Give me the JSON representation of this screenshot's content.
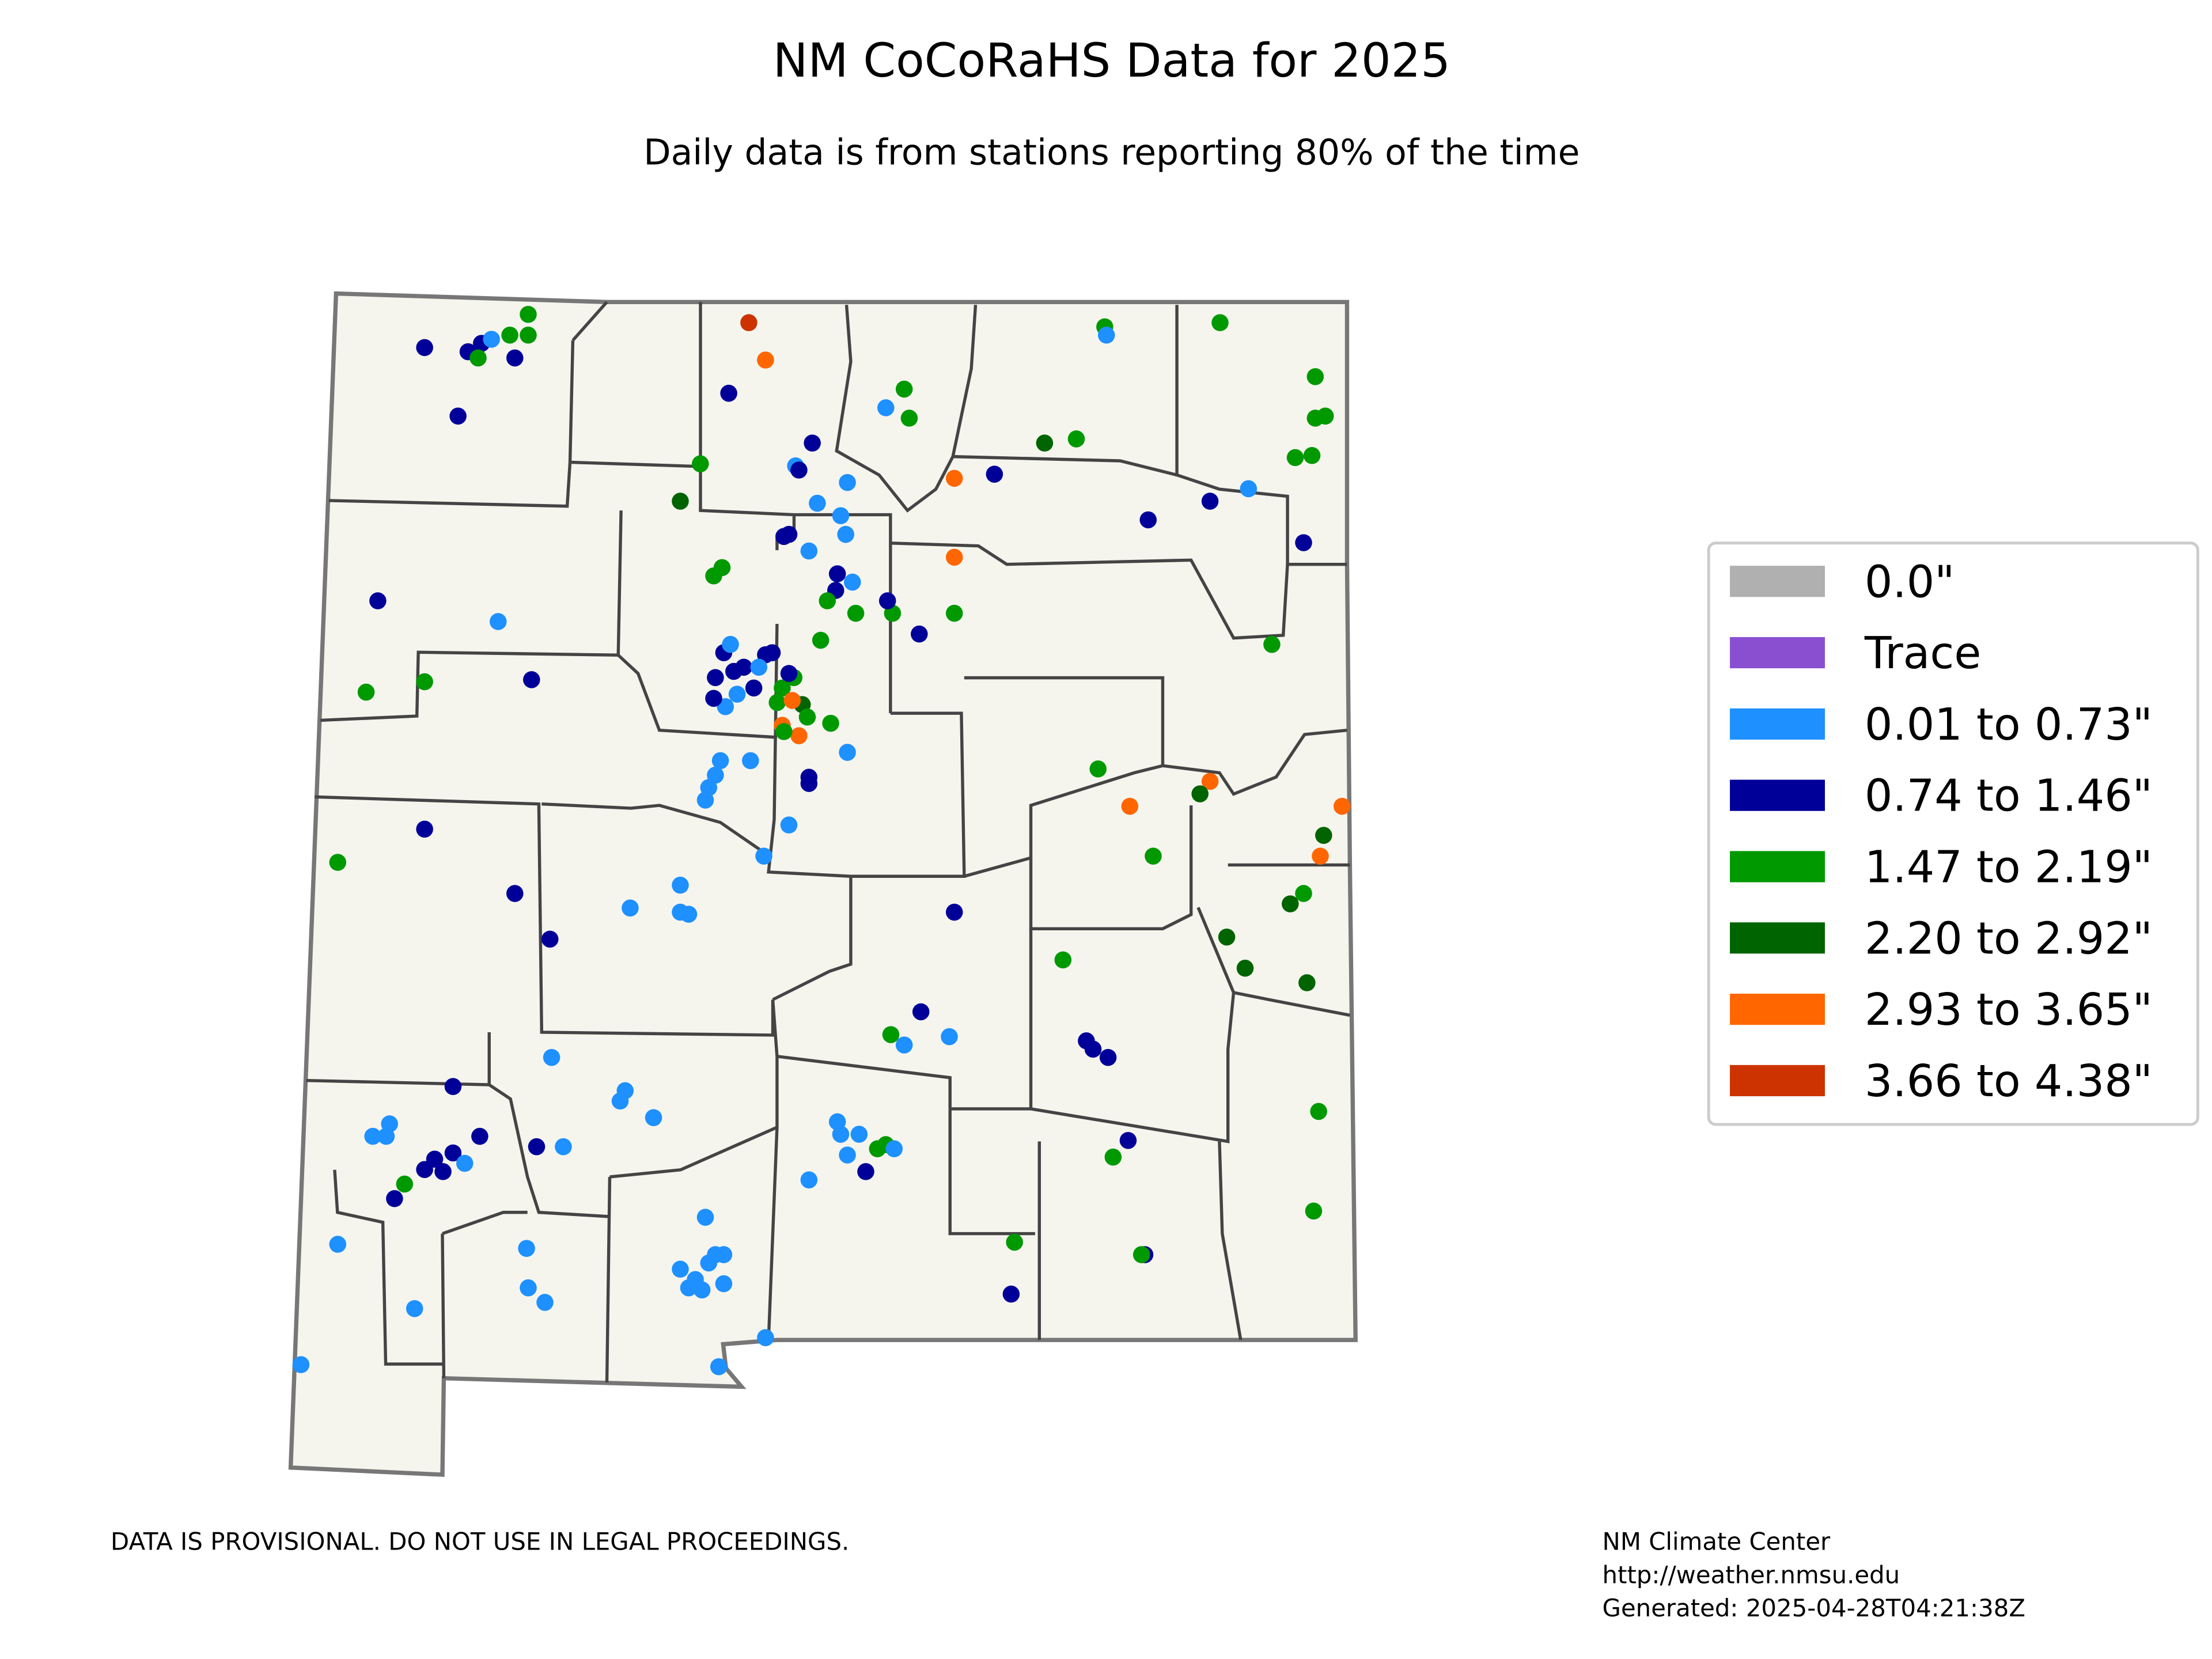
{
  "header": {
    "title": "NM CoCoRaHS Data for 2025",
    "subtitle": "Daily data is from stations reporting 80% of the time"
  },
  "legend": {
    "items": [
      {
        "label": "0.0\"",
        "color": "#b0b0b0"
      },
      {
        "label": "Trace",
        "color": "#8a4fd1"
      },
      {
        "label": "0.01 to 0.73\"",
        "color": "#1e90ff"
      },
      {
        "label": "0.74 to 1.46\"",
        "color": "#000099"
      },
      {
        "label": "1.47 to 2.19\"",
        "color": "#009900"
      },
      {
        "label": "2.20 to 2.92\"",
        "color": "#006400"
      },
      {
        "label": "2.93 to 3.65\"",
        "color": "#ff6600"
      },
      {
        "label": "3.66 to 4.38\"",
        "color": "#cc3300"
      }
    ]
  },
  "map": {
    "lon_lim": [
      -109.05,
      -103.0
    ],
    "lat_lim": [
      31.33,
      37.0
    ],
    "stations": [
      [
        -108.52,
        36.76,
        3
      ],
      [
        -108.26,
        36.74,
        3
      ],
      [
        -108.18,
        36.78,
        3
      ],
      [
        -108.12,
        36.8,
        2
      ],
      [
        -107.98,
        36.71,
        3
      ],
      [
        -108.2,
        36.71,
        4
      ],
      [
        -108.01,
        36.82,
        4
      ],
      [
        -107.9,
        36.82,
        4
      ],
      [
        -107.9,
        36.92,
        4
      ],
      [
        -108.32,
        36.43,
        3
      ],
      [
        -106.58,
        36.88,
        7
      ],
      [
        -106.48,
        36.7,
        6
      ],
      [
        -106.7,
        36.54,
        3
      ],
      [
        -106.2,
        36.3,
        3
      ],
      [
        -106.3,
        36.19,
        2
      ],
      [
        -106.28,
        36.17,
        3
      ],
      [
        -106.87,
        36.2,
        4
      ],
      [
        -106.99,
        36.02,
        5
      ],
      [
        -105.99,
        36.11,
        2
      ],
      [
        -106.17,
        36.01,
        2
      ],
      [
        -106.03,
        35.95,
        2
      ],
      [
        -106.0,
        35.86,
        2
      ],
      [
        -106.34,
        35.86,
        3
      ],
      [
        -106.37,
        35.85,
        3
      ],
      [
        -106.22,
        35.78,
        2
      ],
      [
        -106.74,
        35.7,
        4
      ],
      [
        -106.79,
        35.66,
        4
      ],
      [
        -106.05,
        35.67,
        3
      ],
      [
        -105.96,
        35.63,
        2
      ],
      [
        -106.06,
        35.59,
        3
      ],
      [
        -106.11,
        35.54,
        4
      ],
      [
        -105.94,
        35.48,
        4
      ],
      [
        -105.72,
        35.48,
        4
      ],
      [
        -105.75,
        35.54,
        3
      ],
      [
        -106.15,
        35.35,
        4
      ],
      [
        -105.56,
        35.38,
        3
      ],
      [
        -105.35,
        35.48,
        4
      ],
      [
        -105.35,
        35.75,
        6
      ],
      [
        -105.35,
        36.13,
        6
      ],
      [
        -105.11,
        36.15,
        3
      ],
      [
        -104.81,
        36.3,
        5
      ],
      [
        -104.62,
        36.32,
        4
      ],
      [
        -104.45,
        36.86,
        4
      ],
      [
        -104.44,
        36.82,
        2
      ],
      [
        -103.76,
        36.88,
        4
      ],
      [
        -103.19,
        36.62,
        4
      ],
      [
        -103.19,
        36.42,
        4
      ],
      [
        -103.13,
        36.43,
        4
      ],
      [
        -103.31,
        36.23,
        4
      ],
      [
        -103.21,
        36.24,
        4
      ],
      [
        -103.59,
        36.08,
        2
      ],
      [
        -103.82,
        36.02,
        3
      ],
      [
        -104.19,
        35.93,
        3
      ],
      [
        -103.26,
        35.82,
        3
      ],
      [
        -103.45,
        35.33,
        4
      ],
      [
        -105.76,
        36.47,
        2
      ],
      [
        -105.65,
        36.56,
        4
      ],
      [
        -105.62,
        36.42,
        4
      ],
      [
        -108.8,
        35.54,
        3
      ],
      [
        -108.08,
        35.44,
        2
      ],
      [
        -108.87,
        35.1,
        4
      ],
      [
        -108.52,
        35.15,
        4
      ],
      [
        -107.88,
        35.16,
        3
      ],
      [
        -106.73,
        35.29,
        3
      ],
      [
        -106.69,
        35.33,
        2
      ],
      [
        -106.61,
        35.22,
        3
      ],
      [
        -106.78,
        35.17,
        3
      ],
      [
        -106.65,
        35.09,
        2
      ],
      [
        -106.55,
        35.12,
        3
      ],
      [
        -106.48,
        35.28,
        3
      ],
      [
        -106.44,
        35.29,
        3
      ],
      [
        -106.72,
        35.03,
        2
      ],
      [
        -106.79,
        35.07,
        3
      ],
      [
        -106.52,
        35.22,
        2
      ],
      [
        -106.67,
        35.2,
        3
      ],
      [
        -106.38,
        35.12,
        4
      ],
      [
        -106.31,
        35.17,
        4
      ],
      [
        -106.41,
        35.05,
        4
      ],
      [
        -106.26,
        35.04,
        5
      ],
      [
        -106.34,
        35.19,
        3
      ],
      [
        -106.32,
        35.06,
        6
      ],
      [
        -106.38,
        34.94,
        6
      ],
      [
        -106.28,
        34.89,
        6
      ],
      [
        -106.23,
        34.98,
        4
      ],
      [
        -106.09,
        34.95,
        4
      ],
      [
        -106.37,
        34.91,
        4
      ],
      [
        -105.99,
        34.81,
        2
      ],
      [
        -106.22,
        34.69,
        3
      ],
      [
        -106.22,
        34.66,
        3
      ],
      [
        -106.57,
        34.77,
        2
      ],
      [
        -106.75,
        34.77,
        2
      ],
      [
        -106.78,
        34.7,
        2
      ],
      [
        -106.82,
        34.64,
        2
      ],
      [
        -106.84,
        34.58,
        2
      ],
      [
        -106.34,
        34.46,
        2
      ],
      [
        -106.49,
        34.31,
        2
      ],
      [
        -108.52,
        34.44,
        3
      ],
      [
        -109.04,
        34.28,
        4
      ],
      [
        -107.98,
        34.13,
        3
      ],
      [
        -107.77,
        33.91,
        3
      ],
      [
        -107.29,
        34.06,
        2
      ],
      [
        -106.99,
        34.17,
        2
      ],
      [
        -106.99,
        34.04,
        2
      ],
      [
        -106.94,
        34.03,
        2
      ],
      [
        -105.35,
        34.04,
        3
      ],
      [
        -104.49,
        34.73,
        4
      ],
      [
        -104.3,
        34.55,
        6
      ],
      [
        -103.82,
        34.67,
        6
      ],
      [
        -103.88,
        34.61,
        5
      ],
      [
        -104.16,
        34.31,
        4
      ],
      [
        -103.03,
        34.55,
        6
      ],
      [
        -103.14,
        34.41,
        5
      ],
      [
        -103.16,
        34.31,
        6
      ],
      [
        -103.26,
        34.13,
        4
      ],
      [
        -103.34,
        34.08,
        5
      ],
      [
        -103.72,
        33.92,
        5
      ],
      [
        -103.61,
        33.77,
        5
      ],
      [
        -103.24,
        33.7,
        5
      ],
      [
        -104.7,
        33.81,
        4
      ],
      [
        -105.55,
        33.56,
        3
      ],
      [
        -105.73,
        33.45,
        4
      ],
      [
        -105.65,
        33.4,
        2
      ],
      [
        -105.38,
        33.44,
        2
      ],
      [
        -104.56,
        33.42,
        3
      ],
      [
        -104.52,
        33.38,
        3
      ],
      [
        -104.43,
        33.34,
        3
      ],
      [
        -104.31,
        32.94,
        3
      ],
      [
        -104.4,
        32.86,
        4
      ],
      [
        -103.17,
        33.08,
        4
      ],
      [
        -103.2,
        32.6,
        4
      ],
      [
        -104.99,
        32.45,
        4
      ],
      [
        -104.21,
        32.39,
        3
      ],
      [
        -104.23,
        32.39,
        4
      ],
      [
        -105.01,
        32.2,
        3
      ],
      [
        -107.76,
        33.34,
        2
      ],
      [
        -108.35,
        33.2,
        3
      ],
      [
        -107.35,
        33.13,
        2
      ],
      [
        -107.32,
        33.18,
        2
      ],
      [
        -107.15,
        33.05,
        2
      ],
      [
        -107.85,
        32.91,
        3
      ],
      [
        -107.69,
        32.91,
        2
      ],
      [
        -108.19,
        32.96,
        3
      ],
      [
        -108.73,
        33.02,
        2
      ],
      [
        -108.83,
        32.96,
        2
      ],
      [
        -108.75,
        32.96,
        2
      ],
      [
        -108.46,
        32.85,
        3
      ],
      [
        -108.52,
        32.8,
        3
      ],
      [
        -108.41,
        32.79,
        3
      ],
      [
        -108.35,
        32.88,
        3
      ],
      [
        -108.28,
        32.83,
        2
      ],
      [
        -108.64,
        32.73,
        4
      ],
      [
        -108.7,
        32.66,
        3
      ],
      [
        -109.04,
        32.44,
        2
      ],
      [
        -108.58,
        32.13,
        2
      ],
      [
        -107.91,
        32.42,
        2
      ],
      [
        -107.9,
        32.23,
        2
      ],
      [
        -107.8,
        32.16,
        2
      ],
      [
        -109.26,
        31.86,
        2
      ],
      [
        -106.05,
        33.03,
        2
      ],
      [
        -106.03,
        32.97,
        2
      ],
      [
        -105.92,
        32.97,
        2
      ],
      [
        -105.99,
        32.87,
        2
      ],
      [
        -105.81,
        32.9,
        4
      ],
      [
        -105.76,
        32.92,
        4
      ],
      [
        -105.71,
        32.9,
        2
      ],
      [
        -105.88,
        32.79,
        3
      ],
      [
        -106.22,
        32.75,
        2
      ],
      [
        -106.99,
        32.32,
        2
      ],
      [
        -106.9,
        32.27,
        2
      ],
      [
        -106.82,
        32.35,
        2
      ],
      [
        -106.73,
        32.25,
        2
      ],
      [
        -106.86,
        32.22,
        2
      ],
      [
        -106.78,
        32.39,
        2
      ],
      [
        -106.84,
        32.57,
        2
      ],
      [
        -106.73,
        32.39,
        2
      ],
      [
        -106.94,
        32.23,
        2
      ],
      [
        -106.48,
        31.99,
        2
      ],
      [
        -106.76,
        31.85,
        2
      ]
    ]
  },
  "footer": {
    "disclaimer": "DATA IS PROVISIONAL. DO NOT USE IN LEGAL PROCEEDINGS.",
    "credit": [
      "NM Climate Center",
      "http://weather.nmsu.edu",
      "Generated: 2025-04-28T04:21:38Z"
    ]
  }
}
